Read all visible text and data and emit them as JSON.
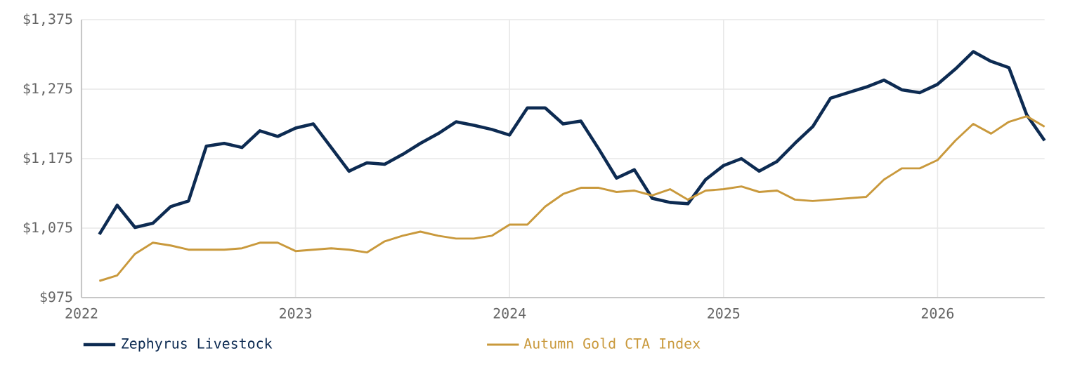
{
  "chart_data": {
    "type": "line",
    "x": [
      "2022-02",
      "2022-03",
      "2022-04",
      "2022-05",
      "2022-06",
      "2022-07",
      "2022-08",
      "2022-09",
      "2022-10",
      "2022-11",
      "2022-12",
      "2023-01",
      "2023-02",
      "2023-03",
      "2023-04",
      "2023-05",
      "2023-06",
      "2023-07",
      "2023-08",
      "2023-09",
      "2023-10",
      "2023-11",
      "2023-12",
      "2024-01",
      "2024-02",
      "2024-03",
      "2024-04",
      "2024-05",
      "2024-06",
      "2024-07",
      "2024-08",
      "2024-09",
      "2024-10",
      "2024-11",
      "2024-12",
      "2025-01",
      "2025-02",
      "2025-03",
      "2025-04",
      "2025-05",
      "2025-06",
      "2025-07",
      "2025-08",
      "2025-09",
      "2025-10",
      "2025-11",
      "2025-12",
      "2026-01",
      "2026-02",
      "2026-03",
      "2026-04",
      "2026-05",
      "2026-06",
      "2026-07"
    ],
    "series": [
      {
        "name": "Zephyrus Livestock",
        "color": "#0d2b52",
        "values": [
          1066,
          1108,
          1076,
          1082,
          1106,
          1114,
          1193,
          1197,
          1191,
          1215,
          1207,
          1219,
          1225,
          1191,
          1157,
          1169,
          1167,
          1181,
          1197,
          1211,
          1228,
          1223,
          1217,
          1209,
          1248,
          1248,
          1225,
          1229,
          1189,
          1147,
          1159,
          1118,
          1112,
          1110,
          1145,
          1165,
          1175,
          1157,
          1171,
          1197,
          1221,
          1262,
          1270,
          1278,
          1288,
          1274,
          1270,
          1282,
          1304,
          1329,
          1315,
          1306,
          1238,
          1201
        ]
      },
      {
        "name": "Autumn Gold CTA Index",
        "color": "#c9993c",
        "values": [
          999,
          1007,
          1038,
          1054,
          1050,
          1044,
          1044,
          1044,
          1046,
          1054,
          1054,
          1042,
          1044,
          1046,
          1044,
          1040,
          1056,
          1064,
          1070,
          1064,
          1060,
          1060,
          1064,
          1080,
          1080,
          1106,
          1124,
          1133,
          1133,
          1127,
          1129,
          1122,
          1131,
          1116,
          1129,
          1131,
          1135,
          1127,
          1129,
          1116,
          1114,
          1116,
          1118,
          1120,
          1145,
          1161,
          1161,
          1173,
          1201,
          1225,
          1211,
          1228,
          1236,
          1221
        ]
      }
    ],
    "xlim": [
      "2022-01",
      "2026-07"
    ],
    "xticks": [
      "2022",
      "2023",
      "2024",
      "2025",
      "2026"
    ],
    "ylim": [
      975,
      1375
    ],
    "yticks": [
      {
        "value": 975,
        "label": "$975"
      },
      {
        "value": 1075,
        "label": "$1,075"
      },
      {
        "value": 1175,
        "label": "$1,175"
      },
      {
        "value": 1275,
        "label": "$1,275"
      },
      {
        "value": 1375,
        "label": "$1,375"
      }
    ],
    "grid": true,
    "legend": "bottom"
  }
}
